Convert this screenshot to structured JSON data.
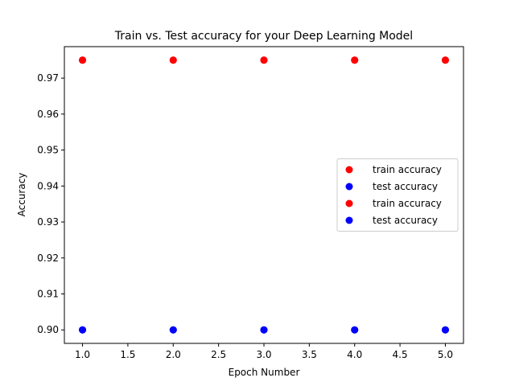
{
  "chart_data": {
    "type": "scatter",
    "title": "Train vs. Test accuracy for your Deep Learning Model",
    "xlabel": "Epoch Number",
    "ylabel": "Accuracy",
    "xlim": [
      0.8,
      5.2
    ],
    "ylim": [
      0.89625,
      0.97875
    ],
    "xticks": [
      1.0,
      1.5,
      2.0,
      2.5,
      3.0,
      3.5,
      4.0,
      4.5,
      5.0
    ],
    "xtick_labels": [
      "1.0",
      "1.5",
      "2.0",
      "2.5",
      "3.0",
      "3.5",
      "4.0",
      "4.5",
      "5.0"
    ],
    "yticks": [
      0.9,
      0.91,
      0.92,
      0.93,
      0.94,
      0.95,
      0.96,
      0.97
    ],
    "ytick_labels": [
      "0.90",
      "0.91",
      "0.92",
      "0.93",
      "0.94",
      "0.95",
      "0.96",
      "0.97"
    ],
    "grid": false,
    "legend_position": "center-right",
    "series": [
      {
        "name": "train accuracy",
        "color": "#ff0000",
        "x": [
          1,
          2,
          3,
          4,
          5
        ],
        "y": [
          0.975,
          0.975,
          0.975,
          0.975,
          0.975
        ]
      },
      {
        "name": "test accuracy",
        "color": "#0000ff",
        "x": [
          1,
          2,
          3,
          4,
          5
        ],
        "y": [
          0.9,
          0.9,
          0.9,
          0.9,
          0.9
        ]
      },
      {
        "name": "train accuracy",
        "color": "#ff0000",
        "x": [
          1,
          2,
          3,
          4,
          5
        ],
        "y": [
          0.975,
          0.975,
          0.975,
          0.975,
          0.975
        ]
      },
      {
        "name": "test accuracy",
        "color": "#0000ff",
        "x": [
          1,
          2,
          3,
          4,
          5
        ],
        "y": [
          0.9,
          0.9,
          0.9,
          0.9,
          0.9
        ]
      }
    ]
  }
}
